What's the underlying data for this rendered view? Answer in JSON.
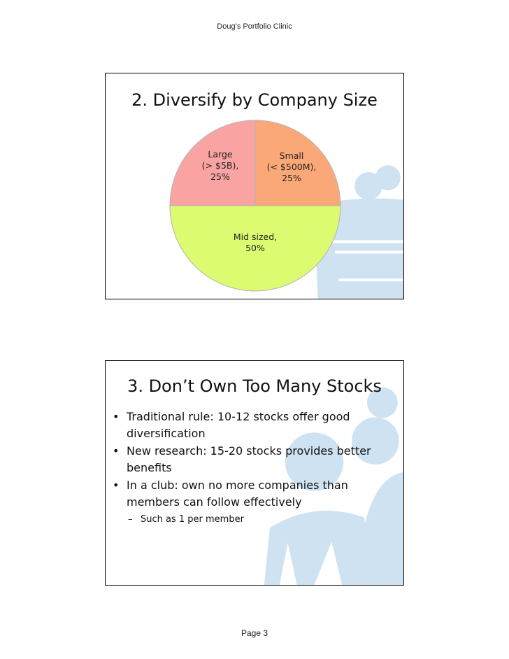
{
  "header": {
    "text": "Doug’s Portfolio Clinic"
  },
  "footer": {
    "text": "Page 3"
  },
  "slide1": {
    "title": "2. Diversify by Company Size",
    "labels": {
      "large": "Large\n(> $5B),\n25%",
      "small": "Small\n(< $500M),\n25%",
      "mid": "Mid sized,\n50%"
    }
  },
  "slide2": {
    "title": "3. Don’t Own Too Many Stocks",
    "bullets": [
      {
        "text": "Traditional rule: 10-12 stocks offer good diversification"
      },
      {
        "text": "New research: 15-20 stocks provides better benefits"
      },
      {
        "text": "In a club: own no more companies than members can follow effectively"
      }
    ],
    "sub_bullet": "Such as 1 per member",
    "bullet_symbol": "•",
    "sub_symbol": "–"
  },
  "chart_data": {
    "type": "pie",
    "title": "",
    "slices": [
      {
        "label": "Large (> $5B)",
        "value": 25,
        "color": "#f9a3a3"
      },
      {
        "label": "Small (< $500M)",
        "value": 25,
        "color": "#fba878"
      },
      {
        "label": "Mid sized",
        "value": 50,
        "color": "#dcfb70"
      }
    ]
  },
  "colors": {
    "watermark": "#cfe2f1",
    "pie_edge": "#b3b3b3"
  }
}
